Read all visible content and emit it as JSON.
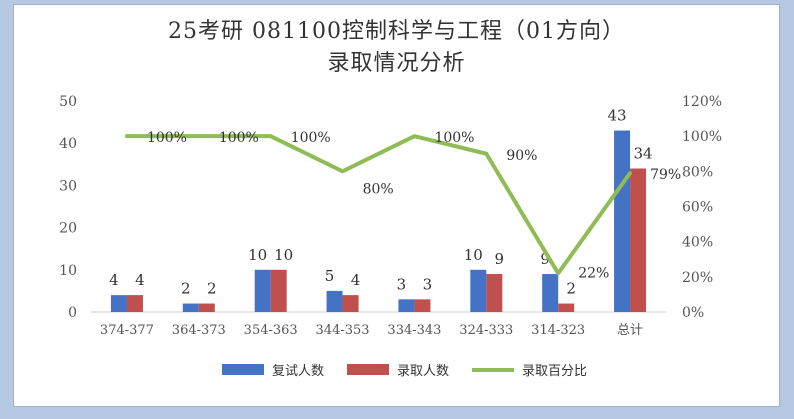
{
  "chart_data": {
    "type": "bar",
    "title_line1": "25考研 081100控制科学与工程（01方向）",
    "title_line2": "录取情况分析",
    "categories": [
      "374-377",
      "364-373",
      "354-363",
      "344-353",
      "334-343",
      "324-333",
      "314-323",
      "总计"
    ],
    "series": [
      {
        "name": "复试人数",
        "type": "bar",
        "axis": "left",
        "color": "#4472c4",
        "values": [
          4,
          2,
          10,
          5,
          3,
          10,
          9,
          43
        ]
      },
      {
        "name": "录取人数",
        "type": "bar",
        "axis": "left",
        "color": "#c0504d",
        "values": [
          4,
          2,
          10,
          4,
          3,
          9,
          2,
          34
        ]
      },
      {
        "name": "录取百分比",
        "type": "line",
        "axis": "right",
        "color": "#8fbc55",
        "values": [
          100,
          100,
          100,
          80,
          100,
          90,
          22,
          79
        ],
        "labels": [
          "100%",
          "100%",
          "100%",
          "80%",
          "100%",
          "90%",
          "22%",
          "79%"
        ]
      }
    ],
    "ylim_left": [
      0,
      50
    ],
    "yticks_left": [
      "0",
      "10",
      "20",
      "30",
      "40",
      "50"
    ],
    "ylim_right": [
      0,
      120
    ],
    "yticks_right": [
      "0%",
      "20%",
      "40%",
      "60%",
      "80%",
      "100%",
      "120%"
    ],
    "grid": false,
    "legend_position": "bottom"
  }
}
